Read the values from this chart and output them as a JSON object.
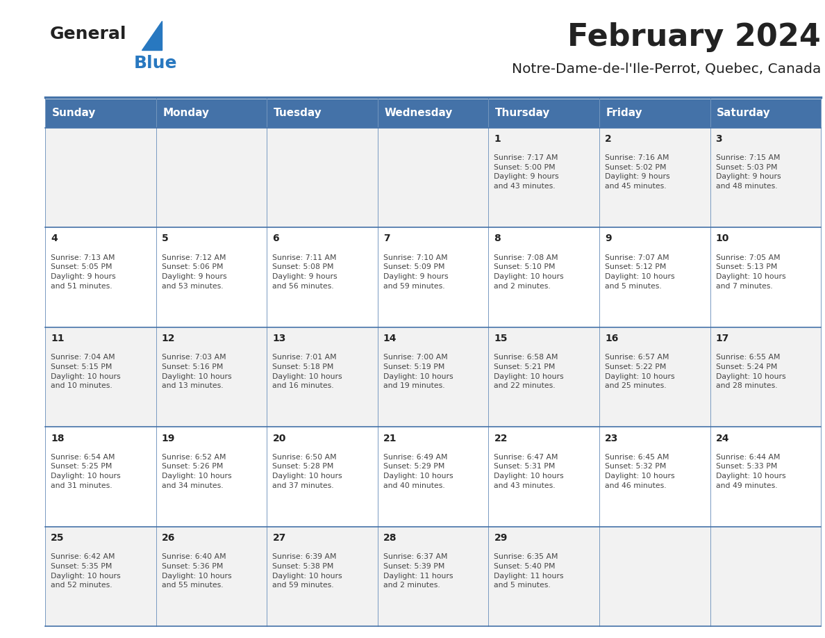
{
  "title": "February 2024",
  "subtitle": "Notre-Dame-de-l'Ile-Perrot, Quebec, Canada",
  "days_of_week": [
    "Sunday",
    "Monday",
    "Tuesday",
    "Wednesday",
    "Thursday",
    "Friday",
    "Saturday"
  ],
  "header_bg": "#4472a8",
  "header_text": "#ffffff",
  "row_bg_even": "#f2f2f2",
  "row_bg_odd": "#ffffff",
  "border_color": "#4472a8",
  "title_color": "#222222",
  "subtitle_color": "#222222",
  "day_number_color": "#222222",
  "cell_text_color": "#444444",
  "logo_general_color": "#222222",
  "logo_blue_color": "#2878c0",
  "weeks": [
    [
      {
        "day": null,
        "info": ""
      },
      {
        "day": null,
        "info": ""
      },
      {
        "day": null,
        "info": ""
      },
      {
        "day": null,
        "info": ""
      },
      {
        "day": 1,
        "info": "Sunrise: 7:17 AM\nSunset: 5:00 PM\nDaylight: 9 hours\nand 43 minutes."
      },
      {
        "day": 2,
        "info": "Sunrise: 7:16 AM\nSunset: 5:02 PM\nDaylight: 9 hours\nand 45 minutes."
      },
      {
        "day": 3,
        "info": "Sunrise: 7:15 AM\nSunset: 5:03 PM\nDaylight: 9 hours\nand 48 minutes."
      }
    ],
    [
      {
        "day": 4,
        "info": "Sunrise: 7:13 AM\nSunset: 5:05 PM\nDaylight: 9 hours\nand 51 minutes."
      },
      {
        "day": 5,
        "info": "Sunrise: 7:12 AM\nSunset: 5:06 PM\nDaylight: 9 hours\nand 53 minutes."
      },
      {
        "day": 6,
        "info": "Sunrise: 7:11 AM\nSunset: 5:08 PM\nDaylight: 9 hours\nand 56 minutes."
      },
      {
        "day": 7,
        "info": "Sunrise: 7:10 AM\nSunset: 5:09 PM\nDaylight: 9 hours\nand 59 minutes."
      },
      {
        "day": 8,
        "info": "Sunrise: 7:08 AM\nSunset: 5:10 PM\nDaylight: 10 hours\nand 2 minutes."
      },
      {
        "day": 9,
        "info": "Sunrise: 7:07 AM\nSunset: 5:12 PM\nDaylight: 10 hours\nand 5 minutes."
      },
      {
        "day": 10,
        "info": "Sunrise: 7:05 AM\nSunset: 5:13 PM\nDaylight: 10 hours\nand 7 minutes."
      }
    ],
    [
      {
        "day": 11,
        "info": "Sunrise: 7:04 AM\nSunset: 5:15 PM\nDaylight: 10 hours\nand 10 minutes."
      },
      {
        "day": 12,
        "info": "Sunrise: 7:03 AM\nSunset: 5:16 PM\nDaylight: 10 hours\nand 13 minutes."
      },
      {
        "day": 13,
        "info": "Sunrise: 7:01 AM\nSunset: 5:18 PM\nDaylight: 10 hours\nand 16 minutes."
      },
      {
        "day": 14,
        "info": "Sunrise: 7:00 AM\nSunset: 5:19 PM\nDaylight: 10 hours\nand 19 minutes."
      },
      {
        "day": 15,
        "info": "Sunrise: 6:58 AM\nSunset: 5:21 PM\nDaylight: 10 hours\nand 22 minutes."
      },
      {
        "day": 16,
        "info": "Sunrise: 6:57 AM\nSunset: 5:22 PM\nDaylight: 10 hours\nand 25 minutes."
      },
      {
        "day": 17,
        "info": "Sunrise: 6:55 AM\nSunset: 5:24 PM\nDaylight: 10 hours\nand 28 minutes."
      }
    ],
    [
      {
        "day": 18,
        "info": "Sunrise: 6:54 AM\nSunset: 5:25 PM\nDaylight: 10 hours\nand 31 minutes."
      },
      {
        "day": 19,
        "info": "Sunrise: 6:52 AM\nSunset: 5:26 PM\nDaylight: 10 hours\nand 34 minutes."
      },
      {
        "day": 20,
        "info": "Sunrise: 6:50 AM\nSunset: 5:28 PM\nDaylight: 10 hours\nand 37 minutes."
      },
      {
        "day": 21,
        "info": "Sunrise: 6:49 AM\nSunset: 5:29 PM\nDaylight: 10 hours\nand 40 minutes."
      },
      {
        "day": 22,
        "info": "Sunrise: 6:47 AM\nSunset: 5:31 PM\nDaylight: 10 hours\nand 43 minutes."
      },
      {
        "day": 23,
        "info": "Sunrise: 6:45 AM\nSunset: 5:32 PM\nDaylight: 10 hours\nand 46 minutes."
      },
      {
        "day": 24,
        "info": "Sunrise: 6:44 AM\nSunset: 5:33 PM\nDaylight: 10 hours\nand 49 minutes."
      }
    ],
    [
      {
        "day": 25,
        "info": "Sunrise: 6:42 AM\nSunset: 5:35 PM\nDaylight: 10 hours\nand 52 minutes."
      },
      {
        "day": 26,
        "info": "Sunrise: 6:40 AM\nSunset: 5:36 PM\nDaylight: 10 hours\nand 55 minutes."
      },
      {
        "day": 27,
        "info": "Sunrise: 6:39 AM\nSunset: 5:38 PM\nDaylight: 10 hours\nand 59 minutes."
      },
      {
        "day": 28,
        "info": "Sunrise: 6:37 AM\nSunset: 5:39 PM\nDaylight: 11 hours\nand 2 minutes."
      },
      {
        "day": 29,
        "info": "Sunrise: 6:35 AM\nSunset: 5:40 PM\nDaylight: 11 hours\nand 5 minutes."
      },
      {
        "day": null,
        "info": ""
      },
      {
        "day": null,
        "info": ""
      }
    ]
  ]
}
